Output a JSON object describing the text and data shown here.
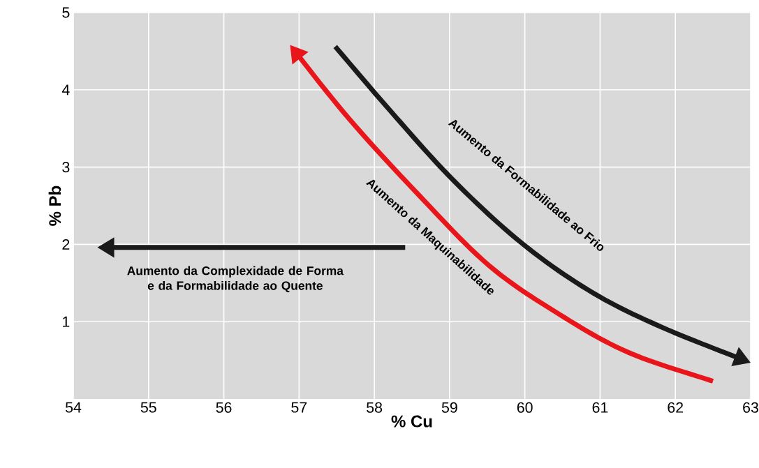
{
  "chart_data": {
    "type": "line",
    "xlabel": "% Cu",
    "ylabel": "% Pb",
    "xlim": [
      54,
      63
    ],
    "xticks": [
      54,
      55,
      56,
      57,
      58,
      59,
      60,
      61,
      62,
      63
    ],
    "ylim": [
      0,
      5
    ],
    "yticks": [
      1,
      2,
      3,
      4,
      5
    ],
    "grid": true,
    "annotations": [
      "Aumento da Formabilidade ao Frio",
      "Aumento da Maquinabilidade",
      "Aumento da Complexidade de Forma e da Formabilidade ao Quente"
    ]
  }
}
